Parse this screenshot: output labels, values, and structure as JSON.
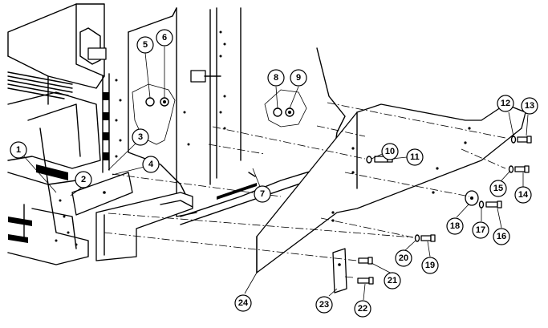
{
  "callouts": [
    {
      "id": "c1",
      "label": "1"
    },
    {
      "id": "c2",
      "label": "2"
    },
    {
      "id": "c3",
      "label": "3"
    },
    {
      "id": "c4",
      "label": "4"
    },
    {
      "id": "c5",
      "label": "5"
    },
    {
      "id": "c6",
      "label": "6"
    },
    {
      "id": "c7",
      "label": "7"
    },
    {
      "id": "c8",
      "label": "8"
    },
    {
      "id": "c9",
      "label": "9"
    },
    {
      "id": "c10",
      "label": "10"
    },
    {
      "id": "c11",
      "label": "11"
    },
    {
      "id": "c12",
      "label": "12"
    },
    {
      "id": "c13",
      "label": "13"
    },
    {
      "id": "c14",
      "label": "14"
    },
    {
      "id": "c15",
      "label": "15"
    },
    {
      "id": "c16",
      "label": "16"
    },
    {
      "id": "c17",
      "label": "17"
    },
    {
      "id": "c18",
      "label": "18"
    },
    {
      "id": "c19",
      "label": "19"
    },
    {
      "id": "c20",
      "label": "20"
    },
    {
      "id": "c21",
      "label": "21"
    },
    {
      "id": "c22",
      "label": "22"
    },
    {
      "id": "c23",
      "label": "23"
    },
    {
      "id": "c24",
      "label": "24"
    }
  ]
}
